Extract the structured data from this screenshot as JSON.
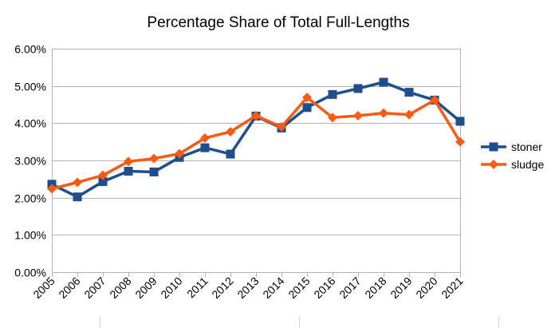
{
  "chart_data": {
    "type": "line",
    "title": "Percentage Share of Total Full-Lengths",
    "xlabel": "",
    "ylabel": "",
    "x": [
      "2005",
      "2006",
      "2007",
      "2008",
      "2009",
      "2010",
      "2011",
      "2012",
      "2013",
      "2014",
      "2015",
      "2016",
      "2017",
      "2018",
      "2019",
      "2020",
      "2021"
    ],
    "ylim": [
      0,
      0.06
    ],
    "yticks": [
      "0.00%",
      "1.00%",
      "2.00%",
      "3.00%",
      "4.00%",
      "5.00%",
      "6.00%"
    ],
    "grid": true,
    "legend_position": "right",
    "series": [
      {
        "name": "stoner",
        "color": "#1f4e8c",
        "marker": "square",
        "values": [
          0.0236,
          0.0202,
          0.0243,
          0.0271,
          0.0269,
          0.0308,
          0.0334,
          0.0317,
          0.0419,
          0.0387,
          0.0442,
          0.0477,
          0.0493,
          0.051,
          0.0483,
          0.0462,
          0.0405
        ]
      },
      {
        "name": "sludge",
        "color": "#ff5a14",
        "marker": "diamond",
        "values": [
          0.0224,
          0.0241,
          0.026,
          0.0297,
          0.0305,
          0.0318,
          0.036,
          0.0377,
          0.042,
          0.039,
          0.0469,
          0.0415,
          0.042,
          0.0427,
          0.0423,
          0.0462,
          0.035
        ]
      }
    ]
  }
}
